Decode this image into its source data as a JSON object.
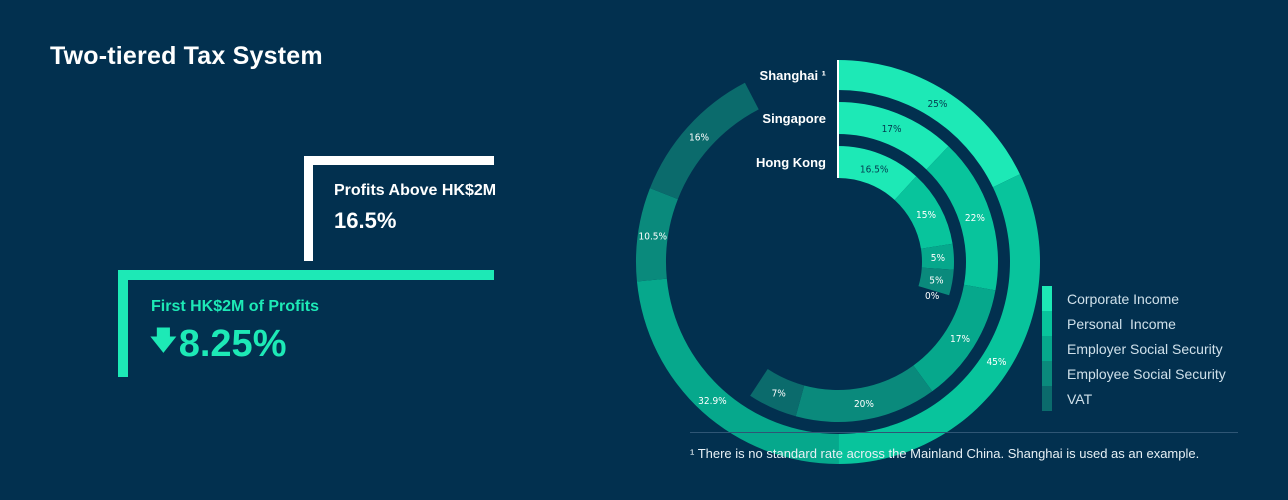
{
  "title": "Two-tiered Tax System",
  "tiers": {
    "upper": {
      "label": "Profits Above HK$2M",
      "rate": "16.5%"
    },
    "lower": {
      "label": "First HK$2M of Profits",
      "arrow": "🡇",
      "rate": "8.25%"
    }
  },
  "colors": {
    "corporate": "#1de9b6",
    "personal": "#08c49c",
    "employer": "#06a88c",
    "employee": "#0a8a7c",
    "vat": "#0b6b6c",
    "background": "#02304f"
  },
  "chart_data": {
    "type": "radial-bar",
    "categories": [
      "Corporate Income",
      "Personal  Income",
      "Employer Social Security",
      "Employee Social Security",
      "VAT"
    ],
    "series": [
      {
        "name": "Shanghai ¹",
        "values": [
          25,
          45,
          32.9,
          10.5,
          16
        ],
        "labels": [
          "25%",
          "45%",
          "32.9%",
          "10.5%",
          "16%"
        ]
      },
      {
        "name": "Singapore",
        "values": [
          17,
          22,
          17,
          20,
          7
        ],
        "labels": [
          "17%",
          "22%",
          "17%",
          "20%",
          "7%"
        ]
      },
      {
        "name": "Hong Kong",
        "values": [
          16.5,
          15,
          5,
          5,
          0
        ],
        "labels": [
          "16.5%",
          "15%",
          "5%",
          "5%",
          "0%"
        ]
      }
    ],
    "legend": "bottom-right"
  },
  "footnote": "¹ There is no standard rate across the Mainland China. Shanghai is used as an example."
}
